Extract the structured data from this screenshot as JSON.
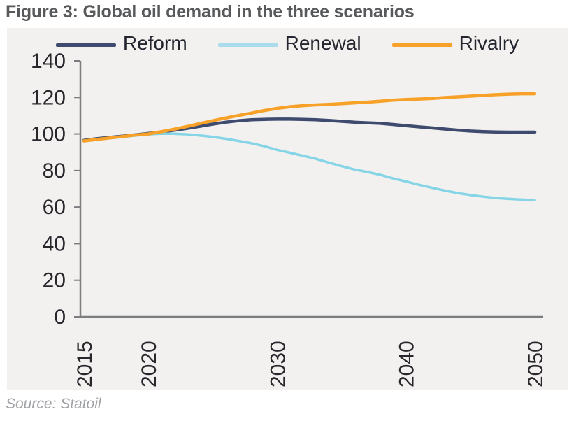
{
  "title": "Figure 3: Global oil demand in the three scenarios",
  "source": "Source: Statoil",
  "colors": {
    "panel_bg": "#f2f1ef",
    "axis": "#7c7d80",
    "title_text": "#58595b",
    "tick_text": "#27272c",
    "legend_text": "#24262f",
    "source_text": "#9fa1a4"
  },
  "legend": {
    "items": [
      {
        "label": "Reform",
        "swatch_color": "#3e4a6e"
      },
      {
        "label": "Renewal",
        "swatch_color": "#aadcec"
      },
      {
        "label": "Rivalry",
        "swatch_color": "#f7a128"
      }
    ]
  },
  "chart_data": {
    "type": "line",
    "title": "Figure 3: Global oil demand in the three scenarios",
    "xlabel": "",
    "ylabel": "",
    "grid": false,
    "legend_position": "top",
    "ylim": [
      0,
      140
    ],
    "yticks": [
      0,
      20,
      40,
      60,
      80,
      100,
      120,
      140
    ],
    "xtick_years": [
      2015,
      2020,
      2030,
      2040,
      2050
    ],
    "xtick_labels": [
      "2015",
      "2020",
      "2030",
      "2040",
      "2050"
    ],
    "x": [
      2015,
      2016,
      2017,
      2018,
      2019,
      2020,
      2021,
      2022,
      2023,
      2024,
      2025,
      2026,
      2027,
      2028,
      2029,
      2030,
      2031,
      2032,
      2033,
      2034,
      2035,
      2036,
      2037,
      2038,
      2039,
      2040,
      2041,
      2042,
      2043,
      2044,
      2045,
      2046,
      2047,
      2048,
      2049,
      2050
    ],
    "series": [
      {
        "name": "Reform",
        "color": "#3e4a6e",
        "width": 4.5,
        "values": [
          96.5,
          97.4,
          98.1,
          98.8,
          99.5,
          100.3,
          101.1,
          102.0,
          103.0,
          104.2,
          105.4,
          106.4,
          107.2,
          107.8,
          108.0,
          108.1,
          108.1,
          108.0,
          107.8,
          107.4,
          106.9,
          106.4,
          106.1,
          105.8,
          105.2,
          104.5,
          103.9,
          103.3,
          102.7,
          102.1,
          101.6,
          101.3,
          101.1,
          101.0,
          101.0,
          101.0
        ]
      },
      {
        "name": "Renewal",
        "color": "#85d5e6",
        "width": 3.5,
        "values": [
          96.0,
          96.9,
          97.7,
          98.4,
          99.1,
          99.8,
          100.1,
          100.1,
          99.8,
          99.2,
          98.4,
          97.4,
          96.2,
          94.9,
          93.3,
          91.3,
          89.7,
          88.1,
          86.4,
          84.4,
          82.4,
          80.6,
          79.2,
          77.7,
          75.7,
          74.0,
          72.2,
          70.6,
          69.1,
          67.7,
          66.6,
          65.7,
          65.0,
          64.5,
          64.1,
          63.8
        ]
      },
      {
        "name": "Rivalry",
        "color": "#f7a128",
        "width": 4.5,
        "values": [
          96.2,
          97.0,
          97.8,
          98.6,
          99.4,
          100.0,
          101.2,
          102.6,
          104.1,
          105.7,
          107.2,
          108.7,
          110.1,
          111.4,
          112.8,
          114.0,
          114.9,
          115.5,
          115.9,
          116.2,
          116.6,
          117.0,
          117.4,
          117.9,
          118.5,
          118.9,
          119.1,
          119.4,
          119.9,
          120.3,
          120.7,
          121.1,
          121.5,
          121.8,
          122.0,
          122.0
        ]
      }
    ]
  }
}
